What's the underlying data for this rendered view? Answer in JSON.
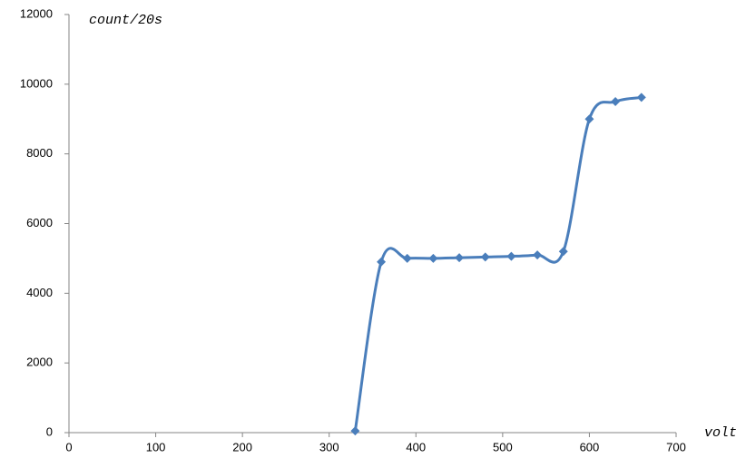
{
  "chart_data": {
    "type": "scatter",
    "smooth": true,
    "y_label": "count/20s",
    "x_label": "volt",
    "series": [
      {
        "color": "#4a7ebb",
        "x": [
          330,
          360,
          390,
          420,
          450,
          480,
          510,
          540,
          570,
          600,
          630,
          660
        ],
        "values": [
          50,
          4900,
          5000,
          5000,
          5020,
          5040,
          5060,
          5100,
          5200,
          9000,
          9500,
          9620
        ]
      }
    ],
    "xlim": [
      0,
      700
    ],
    "xticks": [
      0,
      100,
      200,
      300,
      400,
      500,
      600,
      700
    ],
    "ylim": [
      0,
      12000
    ],
    "yticks": [
      0,
      2000,
      4000,
      6000,
      8000,
      10000,
      12000
    ],
    "grid": false
  }
}
